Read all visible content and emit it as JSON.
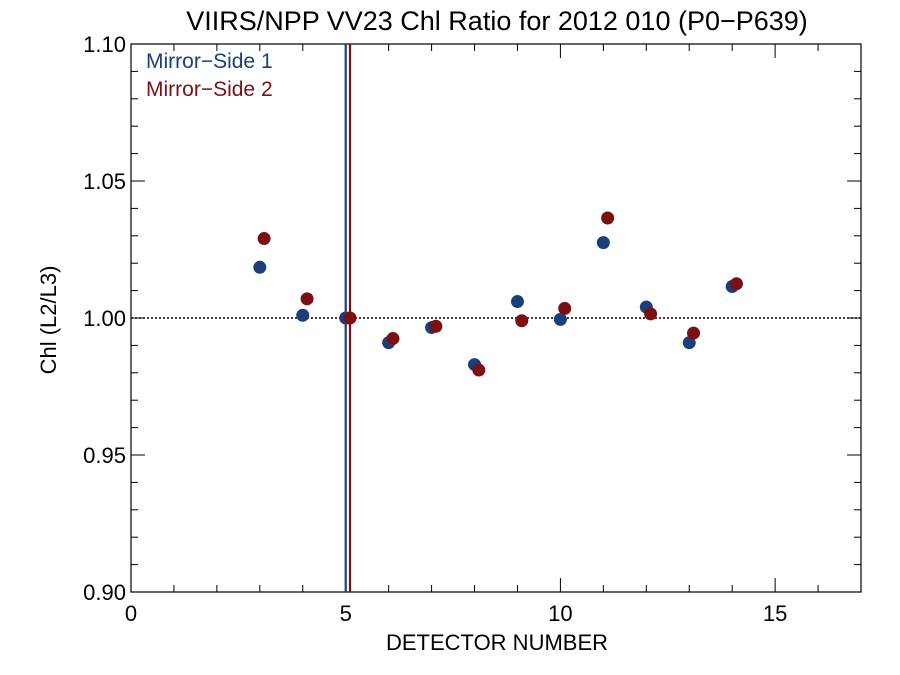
{
  "chart_data": {
    "type": "scatter",
    "title": "VIIRS/NPP VV23 Chl Ratio for 2012 010 (P0−P639)",
    "xlabel": "DETECTOR NUMBER",
    "ylabel": "Chl (L2/L3)",
    "xlim": [
      0,
      17
    ],
    "ylim": [
      0.9,
      1.1
    ],
    "x_ticks": [
      0,
      5,
      10,
      15
    ],
    "x_tick_labels": [
      "0",
      "5",
      "10",
      "15"
    ],
    "y_ticks": [
      0.9,
      0.95,
      1.0,
      1.05,
      1.1
    ],
    "y_tick_labels": [
      "0.90",
      "0.95",
      "1.00",
      "1.05",
      "1.10"
    ],
    "reference_line_y": 1.0,
    "legend_position": "top-left",
    "series": [
      {
        "name": "Mirror−Side 1",
        "color": "#1a3f7a",
        "x": [
          3,
          4,
          5,
          6,
          7,
          8,
          9,
          10,
          11,
          12,
          13,
          14
        ],
        "values": [
          1.0185,
          1.001,
          1.0,
          0.991,
          0.9965,
          0.983,
          1.006,
          0.9995,
          1.0275,
          1.004,
          0.991,
          1.0115
        ],
        "vline_x": 5.0
      },
      {
        "name": "Mirror−Side 2",
        "color": "#7a1014",
        "x": [
          3.1,
          4.1,
          5.1,
          6.1,
          7.1,
          8.1,
          9.1,
          10.1,
          11.1,
          12.1,
          13.1,
          14.1
        ],
        "values": [
          1.029,
          1.007,
          1.0,
          0.9925,
          0.997,
          0.981,
          0.999,
          1.0035,
          1.0365,
          1.0015,
          0.9945,
          1.0125
        ],
        "vline_x": 5.1
      }
    ]
  }
}
